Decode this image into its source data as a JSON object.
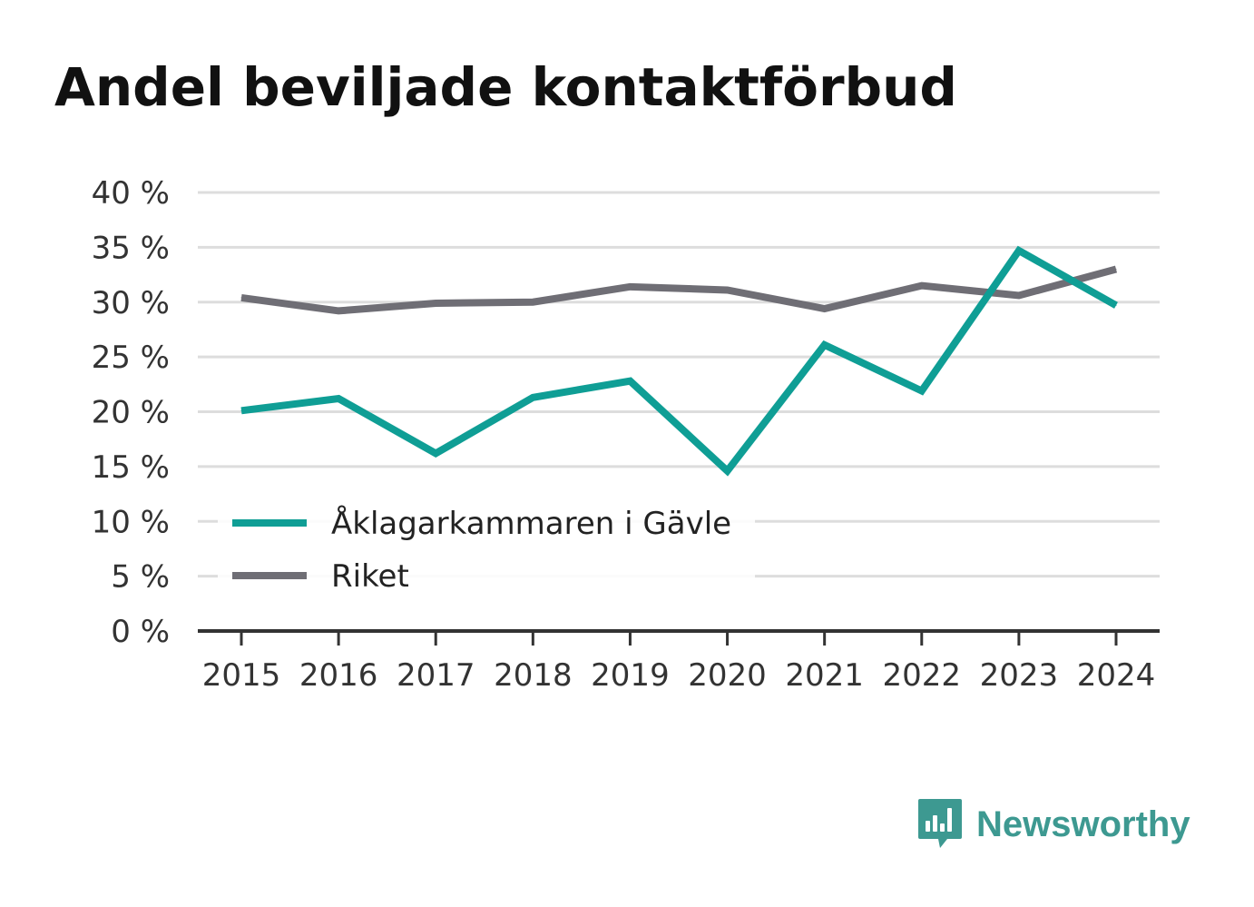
{
  "title": "Andel beviljade kontaktförbud",
  "brand": {
    "name": "Newsworthy",
    "icon": "newsworthy-logo-icon",
    "color": "#3d9991"
  },
  "colors": {
    "series_1": "#0f9e95",
    "series_2": "#6f6e75",
    "grid": "#dddddd",
    "axis": "#333333",
    "text": "#333333"
  },
  "chart_data": {
    "type": "line",
    "x": [
      "2015",
      "2016",
      "2017",
      "2018",
      "2019",
      "2020",
      "2021",
      "2022",
      "2023",
      "2024"
    ],
    "series": [
      {
        "name": "Åklagarkammaren i Gävle",
        "values": [
          20.1,
          21.2,
          16.2,
          21.3,
          22.8,
          14.6,
          26.1,
          21.9,
          34.7,
          29.7
        ]
      },
      {
        "name": "Riket",
        "values": [
          30.4,
          29.2,
          29.9,
          30.0,
          31.4,
          31.1,
          29.4,
          31.5,
          30.6,
          33.0
        ]
      }
    ],
    "ylim": [
      0,
      40
    ],
    "yticks": [
      0,
      5,
      10,
      15,
      20,
      25,
      30,
      35,
      40
    ],
    "ytick_labels": [
      "0 %",
      "5 %",
      "10 %",
      "15 %",
      "20 %",
      "25 %",
      "30 %",
      "35 %",
      "40 %"
    ],
    "xlabel": "",
    "ylabel": "",
    "grid": true,
    "legend_position": "bottom-left"
  }
}
